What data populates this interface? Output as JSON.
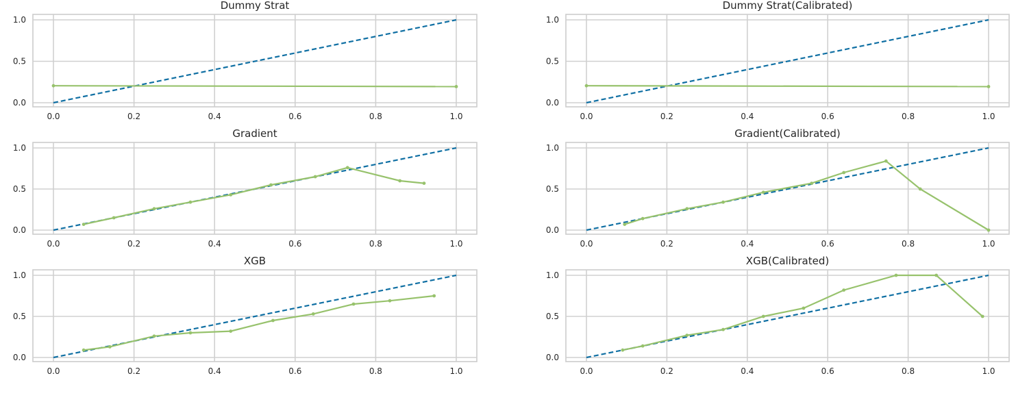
{
  "colors": {
    "reference_line": "#0f6fa3",
    "calibration_curve": "#97c26c",
    "grid": "#d0d0d0",
    "frame": "#cccccc",
    "background": "#ffffff"
  },
  "chart_data": [
    {
      "type": "line",
      "title": "Dummy Strat",
      "xlabel": "",
      "ylabel": "",
      "xlim": [
        0,
        1
      ],
      "ylim": [
        0,
        1
      ],
      "xticks": [
        "0.0",
        "0.2",
        "0.4",
        "0.6",
        "0.8",
        "1.0"
      ],
      "yticks": [
        "0.0",
        "0.5",
        "1.0"
      ],
      "grid": true,
      "reference": {
        "x": [
          0,
          1
        ],
        "y": [
          0,
          1
        ]
      },
      "curve": {
        "x": [
          0.0,
          1.0
        ],
        "y": [
          0.205,
          0.195
        ]
      }
    },
    {
      "type": "line",
      "title": "Dummy Strat(Calibrated)",
      "xlabel": "",
      "ylabel": "",
      "xlim": [
        0,
        1
      ],
      "ylim": [
        0,
        1
      ],
      "xticks": [
        "0.0",
        "0.2",
        "0.4",
        "0.6",
        "0.8",
        "1.0"
      ],
      "yticks": [
        "0.0",
        "0.5",
        "1.0"
      ],
      "grid": true,
      "reference": {
        "x": [
          0,
          1
        ],
        "y": [
          0,
          1
        ]
      },
      "curve": {
        "x": [
          0.0,
          1.0
        ],
        "y": [
          0.205,
          0.195
        ]
      }
    },
    {
      "type": "line",
      "title": "Gradient",
      "xlabel": "",
      "ylabel": "",
      "xlim": [
        0,
        1
      ],
      "ylim": [
        0,
        1
      ],
      "xticks": [
        "0.0",
        "0.2",
        "0.4",
        "0.6",
        "0.8",
        "1.0"
      ],
      "yticks": [
        "0.0",
        "0.5",
        "1.0"
      ],
      "grid": true,
      "reference": {
        "x": [
          0,
          1
        ],
        "y": [
          0,
          1
        ]
      },
      "curve": {
        "x": [
          0.075,
          0.15,
          0.25,
          0.34,
          0.44,
          0.54,
          0.65,
          0.73,
          0.86,
          0.92
        ],
        "y": [
          0.07,
          0.15,
          0.26,
          0.34,
          0.43,
          0.55,
          0.65,
          0.76,
          0.6,
          0.57
        ]
      }
    },
    {
      "type": "line",
      "title": "Gradient(Calibrated)",
      "xlabel": "",
      "ylabel": "",
      "xlim": [
        0,
        1
      ],
      "ylim": [
        0,
        1
      ],
      "xticks": [
        "0.0",
        "0.2",
        "0.4",
        "0.6",
        "0.8",
        "1.0"
      ],
      "yticks": [
        "0.0",
        "0.5",
        "1.0"
      ],
      "grid": true,
      "reference": {
        "x": [
          0,
          1
        ],
        "y": [
          0,
          1
        ]
      },
      "curve": {
        "x": [
          0.095,
          0.14,
          0.25,
          0.34,
          0.44,
          0.56,
          0.64,
          0.745,
          0.83,
          1.0
        ],
        "y": [
          0.07,
          0.14,
          0.26,
          0.34,
          0.46,
          0.57,
          0.7,
          0.84,
          0.5,
          0.0
        ]
      }
    },
    {
      "type": "line",
      "title": "XGB",
      "xlabel": "",
      "ylabel": "",
      "xlim": [
        0,
        1
      ],
      "ylim": [
        0,
        1
      ],
      "xticks": [
        "0.0",
        "0.2",
        "0.4",
        "0.6",
        "0.8",
        "1.0"
      ],
      "yticks": [
        "0.0",
        "0.5",
        "1.0"
      ],
      "grid": true,
      "reference": {
        "x": [
          0,
          1
        ],
        "y": [
          0,
          1
        ]
      },
      "curve": {
        "x": [
          0.075,
          0.14,
          0.25,
          0.34,
          0.44,
          0.545,
          0.645,
          0.745,
          0.835,
          0.945
        ],
        "y": [
          0.09,
          0.13,
          0.26,
          0.3,
          0.32,
          0.45,
          0.53,
          0.65,
          0.69,
          0.75
        ]
      }
    },
    {
      "type": "line",
      "title": "XGB(Calibrated)",
      "xlabel": "",
      "ylabel": "",
      "xlim": [
        0,
        1
      ],
      "ylim": [
        0,
        1
      ],
      "xticks": [
        "0.0",
        "0.2",
        "0.4",
        "0.6",
        "0.8",
        "1.0"
      ],
      "yticks": [
        "0.0",
        "0.5",
        "1.0"
      ],
      "grid": true,
      "reference": {
        "x": [
          0,
          1
        ],
        "y": [
          0,
          1
        ]
      },
      "curve": {
        "x": [
          0.09,
          0.14,
          0.25,
          0.34,
          0.44,
          0.54,
          0.64,
          0.77,
          0.87,
          0.985
        ],
        "y": [
          0.09,
          0.14,
          0.27,
          0.34,
          0.5,
          0.6,
          0.82,
          1.0,
          1.0,
          0.5
        ]
      }
    }
  ]
}
